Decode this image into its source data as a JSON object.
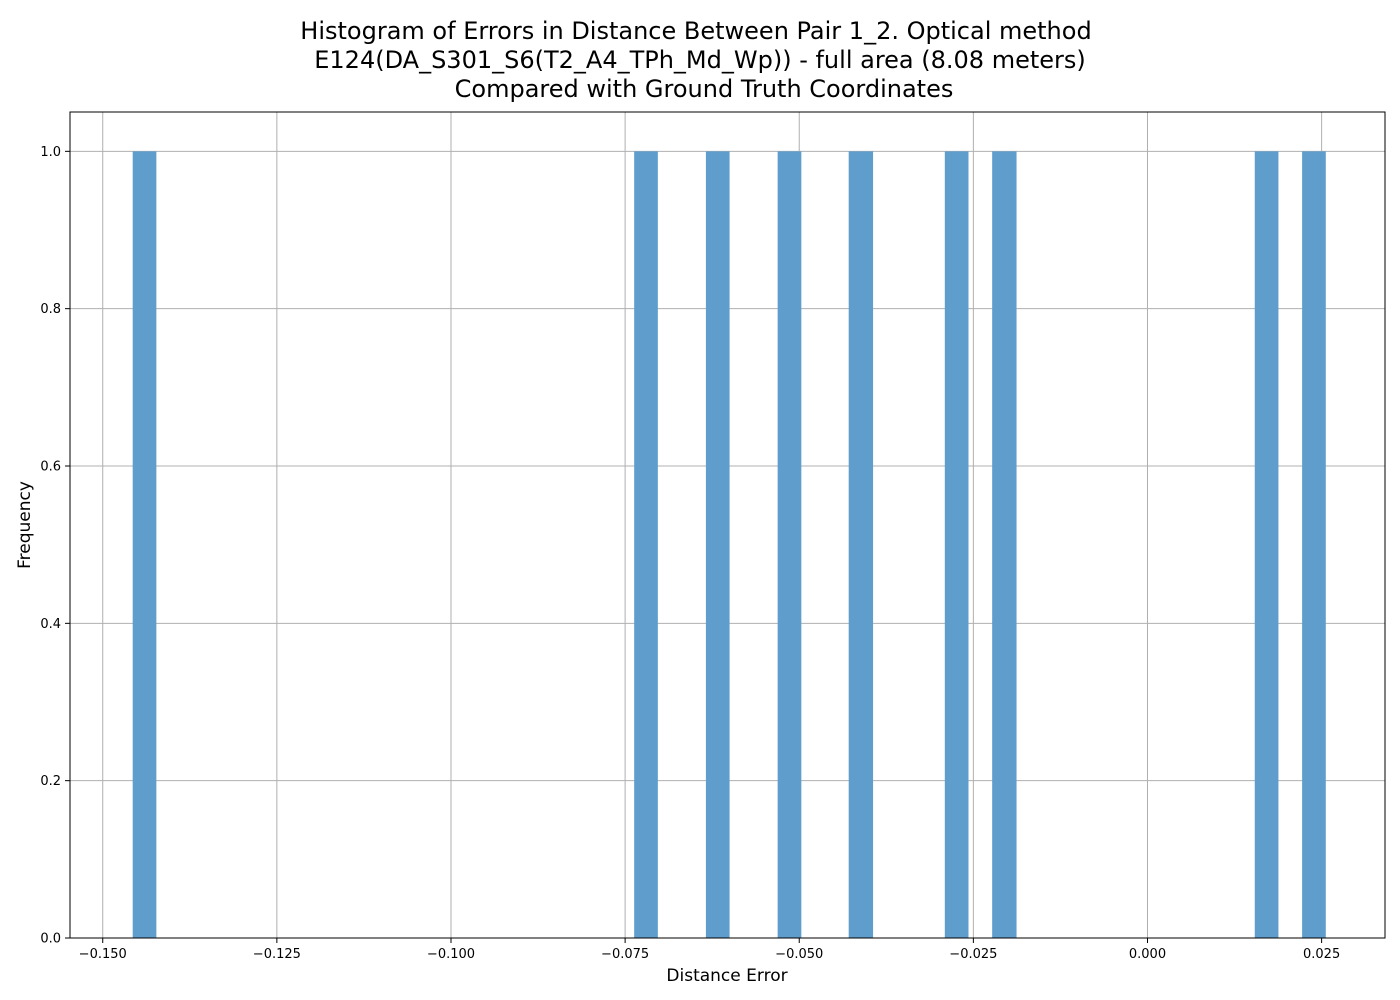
{
  "chart_data": {
    "type": "bar",
    "title_lines": [
      "Histogram of Errors in Distance Between Pair 1_2. Optical method",
      "E124(DA_S301_S6(T2_A4_TPh_Md_Wp)) - full area (8.08 meters)",
      "Compared with Ground Truth Coordinates"
    ],
    "xlabel": "Distance Error",
    "ylabel": "Frequency",
    "xlim": [
      -0.1547,
      0.0341
    ],
    "ylim": [
      0,
      1.05
    ],
    "xticks": [
      -0.15,
      -0.125,
      -0.1,
      -0.075,
      -0.05,
      -0.025,
      0.0,
      0.025
    ],
    "xtick_labels": [
      "−0.150",
      "−0.125",
      "−0.100",
      "−0.075",
      "−0.050",
      "−0.025",
      "0.000",
      "0.025"
    ],
    "yticks": [
      0.0,
      0.2,
      0.4,
      0.6,
      0.8,
      1.0
    ],
    "ytick_labels": [
      "0.0",
      "0.2",
      "0.4",
      "0.6",
      "0.8",
      "1.0"
    ],
    "grid": true,
    "bar_color": "#5f9ecc",
    "bins": [
      {
        "start": -0.1457,
        "end": -0.1423,
        "count": 1
      },
      {
        "start": -0.0737,
        "end": -0.0703,
        "count": 1
      },
      {
        "start": -0.0634,
        "end": -0.06,
        "count": 1
      },
      {
        "start": -0.0531,
        "end": -0.0497,
        "count": 1
      },
      {
        "start": -0.0429,
        "end": -0.0394,
        "count": 1
      },
      {
        "start": -0.0291,
        "end": -0.0257,
        "count": 1
      },
      {
        "start": -0.0223,
        "end": -0.0188,
        "count": 1
      },
      {
        "start": 0.0154,
        "end": 0.0188,
        "count": 1
      },
      {
        "start": 0.0222,
        "end": 0.0256,
        "count": 1
      }
    ]
  }
}
